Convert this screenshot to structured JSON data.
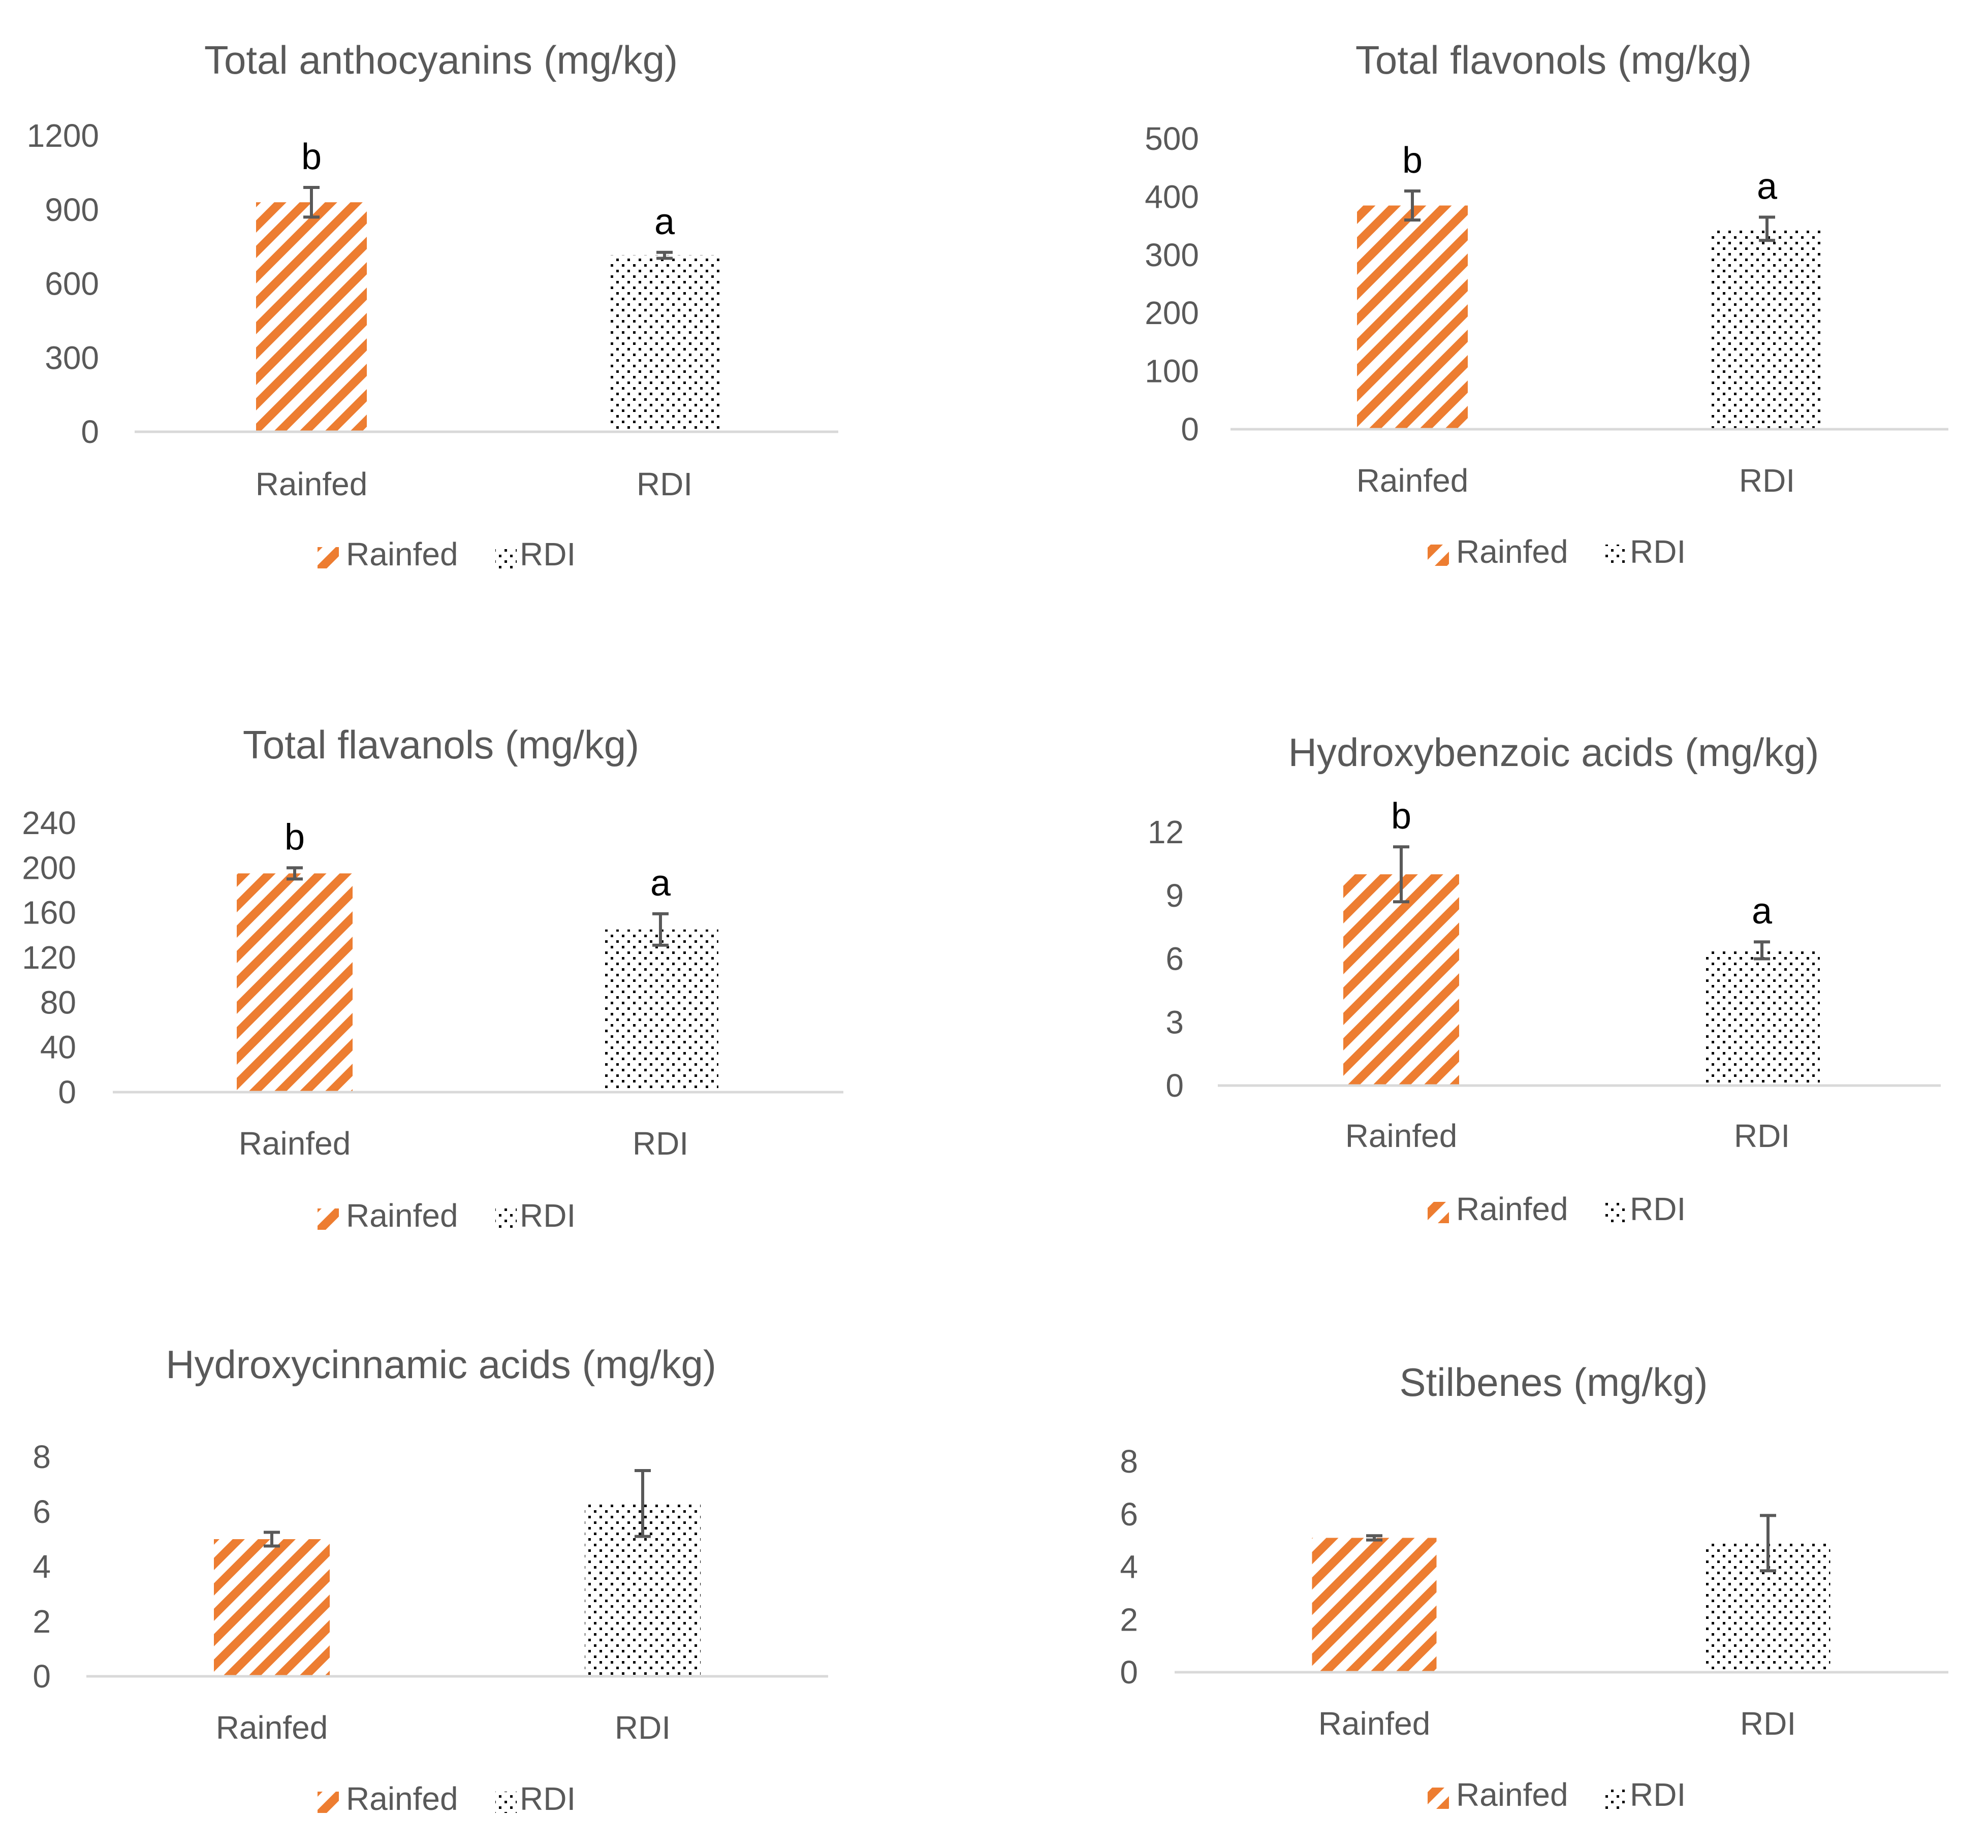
{
  "colors": {
    "rainfed": "#ed7d31",
    "rdi": "#000000",
    "text": "#595959",
    "axis": "#d9d9d9",
    "error_bar": "#595959"
  },
  "legend": {
    "rainfed_label": "Rainfed",
    "rdi_label": "RDI"
  },
  "chart_data": [
    {
      "type": "bar",
      "title": "Total anthocyanins (mg/kg)",
      "categories": [
        "Rainfed",
        "RDI"
      ],
      "values": [
        930,
        715
      ],
      "error": [
        60,
        12
      ],
      "significance": [
        "b",
        "a"
      ],
      "yticks": [
        "0",
        "300",
        "600",
        "900",
        "1200"
      ],
      "ylim": [
        0,
        1200
      ],
      "legend": [
        "Rainfed",
        "RDI"
      ],
      "legend_position": "bottom"
    },
    {
      "type": "bar",
      "title": "Total flavonols (mg/kg)",
      "categories": [
        "Rainfed",
        "RDI"
      ],
      "values": [
        385,
        345
      ],
      "error": [
        25,
        20
      ],
      "significance": [
        "b",
        "a"
      ],
      "yticks": [
        "0",
        "100",
        "200",
        "300",
        "400",
        "500"
      ],
      "ylim": [
        0,
        500
      ],
      "legend": [
        "Rainfed",
        "RDI"
      ],
      "legend_position": "bottom"
    },
    {
      "type": "bar",
      "title": "Total flavanols (mg/kg)",
      "categories": [
        "Rainfed",
        "RDI"
      ],
      "values": [
        195,
        145
      ],
      "error": [
        5,
        14
      ],
      "significance": [
        "b",
        "a"
      ],
      "yticks": [
        "0",
        "40",
        "80",
        "120",
        "160",
        "200",
        "240"
      ],
      "ylim": [
        0,
        240
      ],
      "legend": [
        "Rainfed",
        "RDI"
      ],
      "legend_position": "bottom"
    },
    {
      "type": "bar",
      "title": "Hydroxybenzoic acids (mg/kg)",
      "categories": [
        "Rainfed",
        "RDI"
      ],
      "values": [
        10,
        6.4
      ],
      "error": [
        1.3,
        0.4
      ],
      "significance": [
        "b",
        "a"
      ],
      "yticks": [
        "0",
        "3",
        "6",
        "9",
        "12"
      ],
      "ylim": [
        0,
        12
      ],
      "legend": [
        "Rainfed",
        "RDI"
      ],
      "legend_position": "bottom"
    },
    {
      "type": "bar",
      "title": "Hydroxycinnamic acids (mg/kg)",
      "categories": [
        "Rainfed",
        "RDI"
      ],
      "values": [
        5.0,
        6.3
      ],
      "error": [
        0.25,
        1.2
      ],
      "significance": [
        "",
        ""
      ],
      "yticks": [
        "0",
        "2",
        "4",
        "6",
        "8"
      ],
      "ylim": [
        0,
        8
      ],
      "legend": [
        "Rainfed",
        "RDI"
      ],
      "legend_position": "bottom"
    },
    {
      "type": "bar",
      "title": "Stilbenes (mg/kg)",
      "categories": [
        "Rainfed",
        "RDI"
      ],
      "values": [
        5.1,
        4.9
      ],
      "error": [
        0.08,
        1.05
      ],
      "significance": [
        "",
        ""
      ],
      "yticks": [
        "0",
        "2",
        "4",
        "6",
        "8"
      ],
      "ylim": [
        0,
        8
      ],
      "legend": [
        "Rainfed",
        "RDI"
      ],
      "legend_position": "bottom"
    }
  ]
}
